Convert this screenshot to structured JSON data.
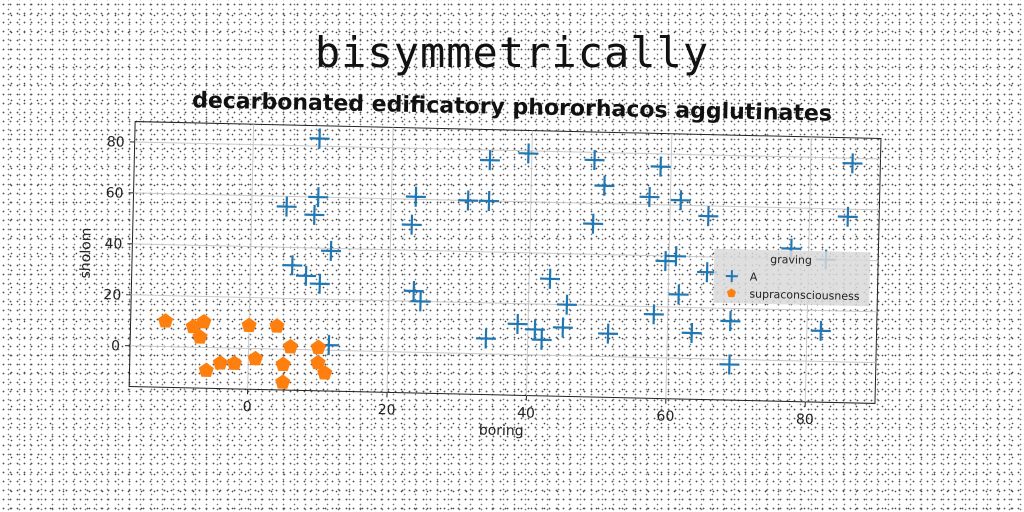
{
  "chart_data": {
    "type": "scatter",
    "title": "bisymmetrically",
    "subtitle": "decarbonated edificatory phororhacos agglutinates",
    "xlabel": "boring",
    "ylabel": "sholom",
    "xlim": [
      -17,
      90
    ],
    "ylim": [
      -16,
      88
    ],
    "xticks": [
      0,
      20,
      40,
      60,
      80
    ],
    "yticks": [
      0,
      20,
      40,
      60,
      80
    ],
    "grid": true,
    "legend": {
      "title": "graving",
      "placement": "right"
    },
    "colors": {
      "A": "#1f77b4",
      "supraconsciousness": "#ff7f0e"
    },
    "series": [
      {
        "name": "A",
        "marker": "plus",
        "points": [
          [
            9.5,
            83
          ],
          [
            34,
            76
          ],
          [
            39.5,
            79
          ],
          [
            49,
            77
          ],
          [
            58.5,
            75
          ],
          [
            86,
            78
          ],
          [
            50.5,
            67
          ],
          [
            57,
            63
          ],
          [
            61.5,
            62
          ],
          [
            65.5,
            56
          ],
          [
            85.5,
            57
          ],
          [
            5,
            56
          ],
          [
            9.5,
            60
          ],
          [
            9,
            53
          ],
          [
            23.5,
            61
          ],
          [
            23,
            50
          ],
          [
            31,
            60
          ],
          [
            34,
            60
          ],
          [
            49,
            52
          ],
          [
            11.5,
            39
          ],
          [
            6,
            33
          ],
          [
            8,
            29
          ],
          [
            10,
            26
          ],
          [
            59.5,
            38
          ],
          [
            61,
            40
          ],
          [
            65.5,
            34
          ],
          [
            61.5,
            25
          ],
          [
            77.5,
            44
          ],
          [
            82.5,
            40
          ],
          [
            43,
            30
          ],
          [
            45.5,
            20
          ],
          [
            23.5,
            24
          ],
          [
            24.5,
            20
          ],
          [
            58,
            17
          ],
          [
            69,
            15
          ],
          [
            34,
            6
          ],
          [
            38.5,
            12
          ],
          [
            41,
            10
          ],
          [
            42,
            6
          ],
          [
            45,
            11
          ],
          [
            51.5,
            9
          ],
          [
            63.5,
            10
          ],
          [
            82,
            12
          ],
          [
            11.5,
            2
          ],
          [
            69,
            -2
          ]
        ]
      },
      {
        "name": "supraconsciousness",
        "marker": "pentagon",
        "points": [
          [
            -12,
            10
          ],
          [
            -8,
            8
          ],
          [
            -6.5,
            10
          ],
          [
            -7,
            4
          ],
          [
            0,
            9
          ],
          [
            4,
            9
          ],
          [
            -4,
            -6
          ],
          [
            -2,
            -6
          ],
          [
            1,
            -4
          ],
          [
            5,
            -6
          ],
          [
            6,
            1
          ],
          [
            10,
            1
          ],
          [
            10,
            -5
          ],
          [
            11,
            -9
          ],
          [
            -6,
            -9
          ],
          [
            5,
            -13
          ]
        ]
      }
    ]
  }
}
